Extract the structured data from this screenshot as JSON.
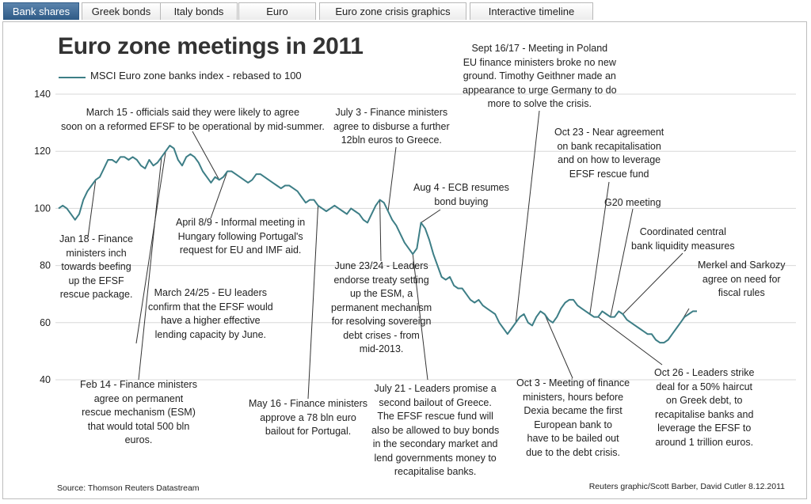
{
  "tabs": [
    {
      "label": "Bank shares",
      "active": true
    },
    {
      "label": "Greek bonds",
      "active": false
    },
    {
      "label": "Italy bonds",
      "active": false
    },
    {
      "label": "Euro",
      "active": false
    },
    {
      "label": "Euro zone crisis graphics",
      "active": false
    },
    {
      "label": "Interactive timeline",
      "active": false
    }
  ],
  "colors": {
    "line": "#3d7e86",
    "grid": "#d8d8d8",
    "annotation_line": "#333333",
    "active_tab": "#2e5a86"
  },
  "footer": {
    "source": "Source: Thomson Reuters Datastream",
    "credit": "Reuters graphic/Scott Barber, David Cutler 8.12.2011"
  },
  "chart_data": {
    "type": "line",
    "title": "Euro zone meetings in 2011",
    "series": [
      {
        "name": "MSCI Euro zone banks index - rebased to 100",
        "values": [
          100,
          101,
          100,
          98,
          96,
          98,
          103,
          106,
          108,
          110,
          111,
          114,
          117,
          117,
          116,
          118,
          118,
          117,
          118,
          117,
          115,
          114,
          117,
          115,
          116,
          118,
          120,
          122,
          121,
          117,
          115,
          118,
          119,
          118,
          116,
          113,
          111,
          109,
          111,
          110,
          111,
          113,
          113,
          112,
          111,
          110,
          109,
          110,
          112,
          112,
          111,
          110,
          109,
          108,
          107,
          108,
          108,
          107,
          106,
          104,
          102,
          103,
          103,
          101,
          100,
          99,
          100,
          101,
          100,
          99,
          98,
          100,
          99,
          98,
          96,
          95,
          98,
          101,
          103,
          102,
          99,
          96,
          94,
          91,
          88,
          86,
          84,
          86,
          95,
          93,
          89,
          84,
          80,
          76,
          75,
          76,
          73,
          72,
          72,
          70,
          68,
          67,
          68,
          66,
          65,
          64,
          63,
          60,
          58,
          56,
          58,
          60,
          62,
          63,
          60,
          59,
          62,
          64,
          63,
          61,
          60,
          62,
          65,
          67,
          68,
          68,
          66,
          65,
          64,
          63,
          62,
          62,
          64,
          63,
          62,
          62,
          64,
          63,
          61,
          60,
          59,
          58,
          57,
          56,
          56,
          54,
          53,
          53,
          54,
          56,
          58,
          60,
          62,
          63,
          64,
          64
        ]
      }
    ],
    "x_range": [
      "Jan 2011",
      "Dec 2011"
    ],
    "yticks": [
      40,
      60,
      80,
      100,
      120,
      140
    ],
    "ylim": [
      40,
      140
    ],
    "grid": true,
    "legend_position": "top-left",
    "annotations": [
      {
        "index": 9,
        "lines": [
          "Jan 18 - Finance",
          "ministers inch",
          "towards beefing",
          "up the EFSF",
          "rescue package."
        ]
      },
      {
        "index": 25,
        "lines": [
          "Feb 14 - Finance ministers",
          "agree on permanent",
          "rescue mechanism (ESM)",
          "that would total 500 bln",
          "euros."
        ]
      },
      {
        "index": 39,
        "lines": [
          "March 15 - officials said they were likely to agree",
          "soon on a reformed EFSF to be operational by mid-summer."
        ]
      },
      {
        "index": 26,
        "lines": [
          "March 24/25 - EU leaders",
          "confirm that the EFSF would",
          "have a higher effective",
          "lending capacity by June."
        ]
      },
      {
        "index": 41,
        "lines": [
          "April 8/9 - Informal meeting in",
          "Hungary following Portugal's",
          "request for EU and IMF aid."
        ]
      },
      {
        "index": 63,
        "lines": [
          "May 16 - Finance ministers",
          "approve a 78 bln euro",
          "bailout for Portugal."
        ]
      },
      {
        "index": 78,
        "lines": [
          "June 23/24 - Leaders",
          "endorse treaty setting",
          "up the ESM, a",
          "permanent mechanism",
          "for resolving sovereign",
          "debt crises - from",
          "mid-2013."
        ]
      },
      {
        "index": 80,
        "lines": [
          "July 3 - Finance ministers",
          "agree to disburse a further",
          "12bln euros to Greece."
        ]
      },
      {
        "index": 86,
        "lines": [
          "July 21 - Leaders promise a",
          "second bailout of Greece.",
          "The EFSF rescue fund will",
          "also be allowed to buy bonds",
          "in the secondary market and",
          "lend governments money to",
          "recapitalise banks."
        ]
      },
      {
        "index": 88,
        "lines": [
          "Aug 4 - ECB resumes",
          "bond buying"
        ]
      },
      {
        "index": 111,
        "lines": [
          "Sept 16/17 - Meeting in Poland",
          "EU finance ministers broke no new",
          "ground. Timothy Geithner made an",
          "appearance to urge Germany to do",
          "more to solve the crisis."
        ]
      },
      {
        "index": 118,
        "lines": [
          "Oct 3 - Meeting of finance",
          "ministers, hours before",
          "Dexia became the first",
          "European bank to",
          "have to be bailed out",
          "due to the debt crisis."
        ]
      },
      {
        "index": 129,
        "lines": [
          "Oct 23 - Near agreement",
          "on bank recapitalisation",
          "and on how to leverage",
          "EFSF rescue fund"
        ]
      },
      {
        "index": 131,
        "lines": [
          "Oct 26 - Leaders strike",
          "deal for a 50% haircut",
          "on Greek debt, to",
          "recapitalise banks and",
          "leverage the EFSF to",
          "around 1 trillion euros."
        ]
      },
      {
        "index": 134,
        "lines": [
          "G20 meeting"
        ]
      },
      {
        "index": 137,
        "lines": [
          "Coordinated central",
          "bank liquidity measures"
        ]
      },
      {
        "index": 151,
        "lines": [
          "Merkel and Sarkozy",
          "agree on need for",
          "fiscal rules"
        ]
      }
    ]
  }
}
